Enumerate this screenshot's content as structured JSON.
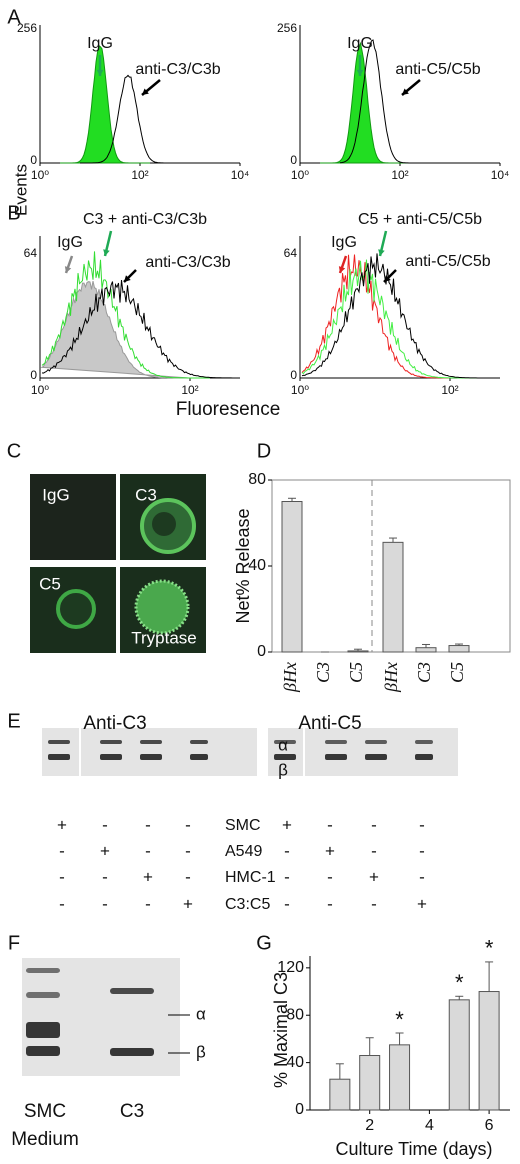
{
  "figure": {
    "axis_labels": {
      "events": "Events",
      "fluorescence": "Fluoresence"
    },
    "panel_A": {
      "label": "A",
      "plots": [
        {
          "ymax": "256",
          "ymin": "0",
          "xticks": [
            "10⁰",
            "10²",
            "10⁴"
          ],
          "labels": [
            "IgG",
            "anti-C3/C3b"
          ]
        },
        {
          "ymax": "256",
          "ymin": "0",
          "xticks": [
            "10⁰",
            "10²",
            "10⁴"
          ],
          "labels": [
            "IgG",
            "anti-C5/C5b"
          ]
        }
      ]
    },
    "panel_B": {
      "label": "B",
      "plots": [
        {
          "ymax": "64",
          "ymin": "0",
          "xticks": [
            "10⁰",
            "10²"
          ],
          "labels": [
            "IgG",
            "C3 + anti-C3/C3b",
            "anti-C3/C3b"
          ]
        },
        {
          "ymax": "64",
          "ymin": "0",
          "xticks": [
            "10⁰",
            "10²"
          ],
          "labels": [
            "IgG",
            "C5 + anti-C5/C5b",
            "anti-C5/C5b"
          ]
        }
      ]
    },
    "panel_C": {
      "label": "C",
      "images": [
        "IgG",
        "C3",
        "C5",
        "Tryptase"
      ]
    },
    "panel_E": {
      "label": "E",
      "blots": [
        "Anti-C3",
        "Anti-C5"
      ],
      "bands": [
        "α",
        "β"
      ],
      "rows": [
        {
          "name": "SMC",
          "left": [
            "+",
            "-",
            "-",
            "-"
          ],
          "right": [
            "+",
            "-",
            "-",
            "-"
          ]
        },
        {
          "name": "A549",
          "left": [
            "-",
            "+",
            "-",
            "-"
          ],
          "right": [
            "-",
            "+",
            "-",
            "-"
          ]
        },
        {
          "name": "HMC-1",
          "left": [
            "-",
            "-",
            "+",
            "-"
          ],
          "right": [
            "-",
            "-",
            "+",
            "-"
          ]
        },
        {
          "name": "C3:C5",
          "left": [
            "-",
            "-",
            "-",
            "+"
          ],
          "right": [
            "-",
            "-",
            "-",
            "+"
          ]
        }
      ]
    },
    "panel_F": {
      "label": "F",
      "lanes": [
        [
          "SMC",
          "Medium"
        ],
        [
          "C3"
        ]
      ],
      "bands": [
        "α",
        "β"
      ]
    }
  },
  "chart_data": [
    {
      "type": "bar",
      "label": "D",
      "ylabel": "Net% Release",
      "categories": [
        "βHx",
        "C3",
        "C5",
        "βHx",
        "C3",
        "C5"
      ],
      "values": [
        70,
        0,
        0.5,
        51,
        2,
        3
      ],
      "errors": [
        1.5,
        0,
        0.8,
        2,
        1.5,
        0.7
      ],
      "ylim": [
        0,
        80
      ],
      "yticks": [
        0,
        40,
        80
      ],
      "color": "#d9d9d9"
    },
    {
      "type": "bar",
      "label": "G",
      "ylabel": "% Maximal C3",
      "xlabel": "Culture Time (days)",
      "x": [
        1,
        2,
        3,
        5,
        6
      ],
      "values": [
        26,
        46,
        55,
        93,
        100
      ],
      "errors": [
        13,
        15,
        10,
        3,
        25
      ],
      "xlim": [
        0,
        6.7
      ],
      "xticks": [
        2,
        4,
        6
      ],
      "ylim": [
        0,
        130
      ],
      "yticks": [
        0,
        40,
        80,
        120
      ],
      "annotations": [
        {
          "x": 3,
          "text": "*"
        },
        {
          "x": 5,
          "text": "*"
        },
        {
          "x": 6,
          "text": "*"
        }
      ],
      "color": "#d9d9d9"
    }
  ]
}
